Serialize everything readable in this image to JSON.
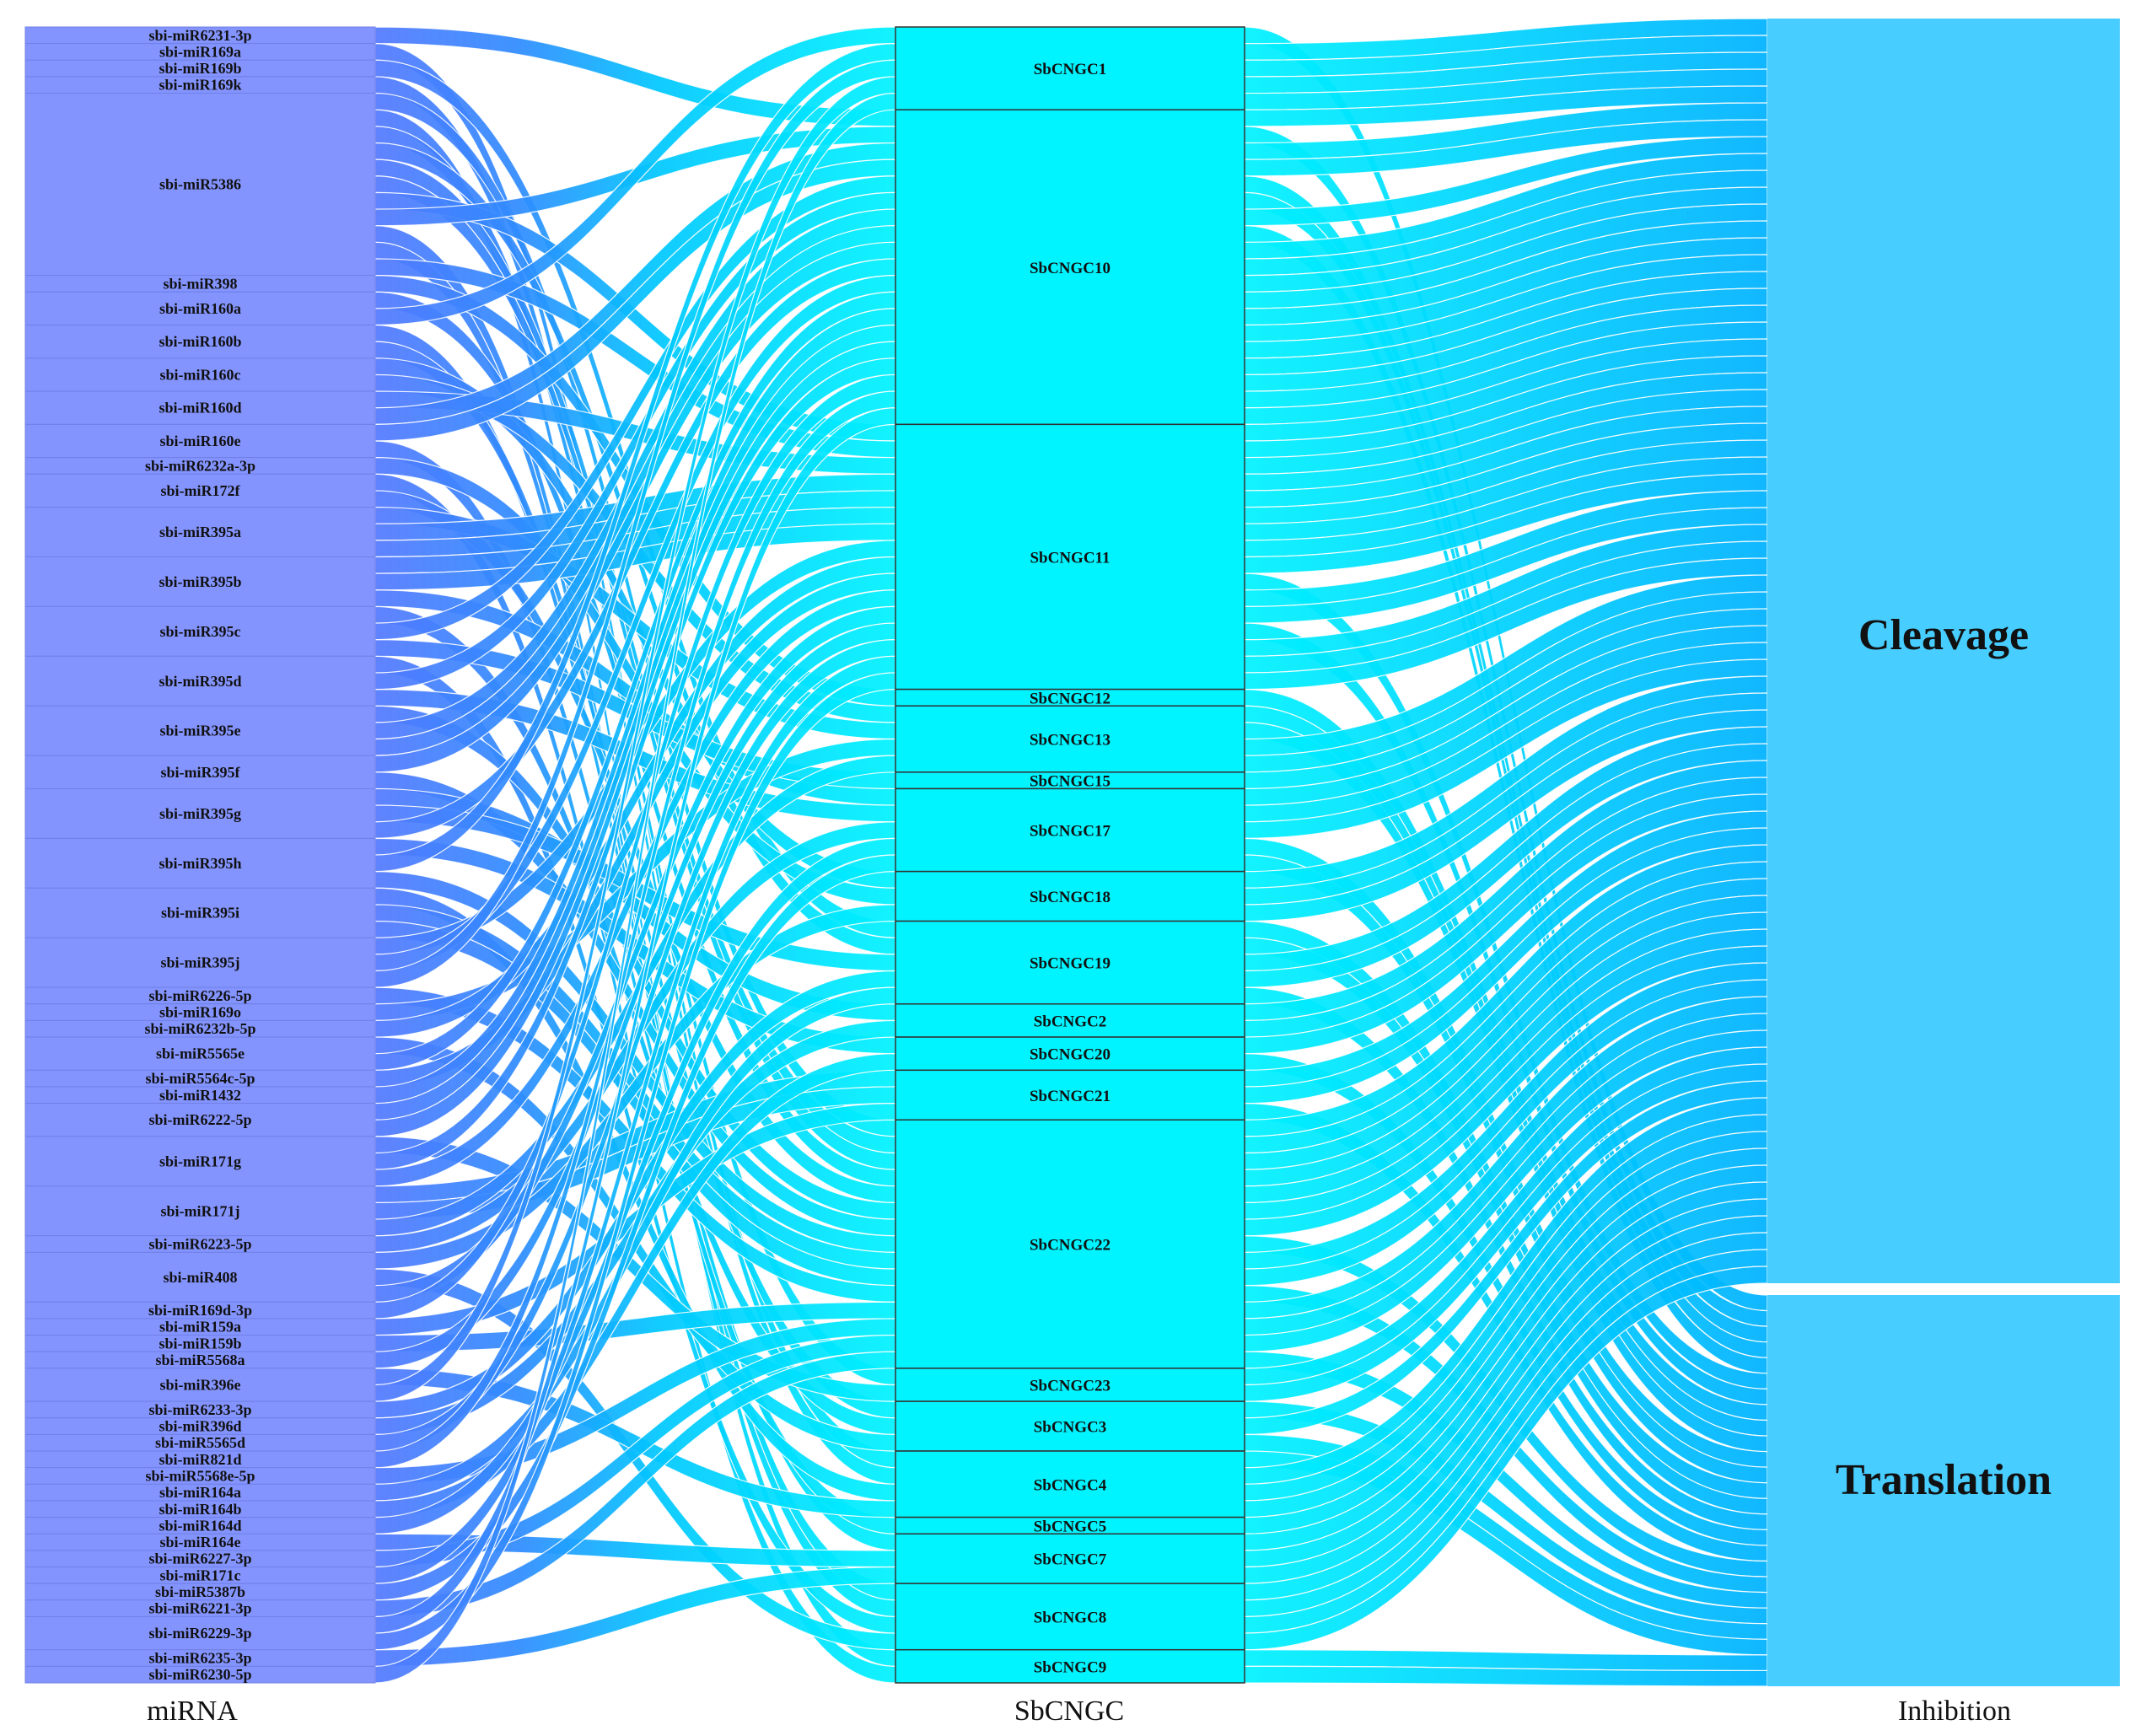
{
  "columns": {
    "mirna": "miRNA",
    "gene": "SbCNGC",
    "inhibition": "Inhibition"
  },
  "colors": {
    "mirna_node": "#8494ff",
    "mirna_link": "#5276ff",
    "mid_link": "#00e6ff",
    "gene_node": "#00f4ff",
    "gene_link": "#00b4ff",
    "inh_node": "#47cdff",
    "border": "#333333"
  },
  "inhibition_nodes": [
    {
      "id": "Cleavage",
      "label": "Cleavage"
    },
    {
      "id": "Translation",
      "label": "Translation"
    }
  ],
  "genes": [
    {
      "id": "SbCNGC1",
      "label": "SbCNGC1",
      "value": 5
    },
    {
      "id": "SbCNGC10",
      "label": "SbCNGC10",
      "value": 19
    },
    {
      "id": "SbCNGC11",
      "label": "SbCNGC11",
      "value": 16
    },
    {
      "id": "SbCNGC12",
      "label": "SbCNGC12",
      "value": 1
    },
    {
      "id": "SbCNGC13",
      "label": "SbCNGC13",
      "value": 4
    },
    {
      "id": "SbCNGC15",
      "label": "SbCNGC15",
      "value": 1
    },
    {
      "id": "SbCNGC17",
      "label": "SbCNGC17",
      "value": 5
    },
    {
      "id": "SbCNGC18",
      "label": "SbCNGC18",
      "value": 3
    },
    {
      "id": "SbCNGC19",
      "label": "SbCNGC19",
      "value": 5
    },
    {
      "id": "SbCNGC2",
      "label": "SbCNGC2",
      "value": 2
    },
    {
      "id": "SbCNGC20",
      "label": "SbCNGC20",
      "value": 2
    },
    {
      "id": "SbCNGC21",
      "label": "SbCNGC21",
      "value": 3
    },
    {
      "id": "SbCNGC22",
      "label": "SbCNGC22",
      "value": 15
    },
    {
      "id": "SbCNGC23",
      "label": "SbCNGC23",
      "value": 2
    },
    {
      "id": "SbCNGC3",
      "label": "SbCNGC3",
      "value": 3
    },
    {
      "id": "SbCNGC4",
      "label": "SbCNGC4",
      "value": 4
    },
    {
      "id": "SbCNGC5",
      "label": "SbCNGC5",
      "value": 1
    },
    {
      "id": "SbCNGC7",
      "label": "SbCNGC7",
      "value": 3
    },
    {
      "id": "SbCNGC8",
      "label": "SbCNGC8",
      "value": 4
    },
    {
      "id": "SbCNGC9",
      "label": "SbCNGC9",
      "value": 2
    }
  ],
  "mirnas": [
    {
      "label": "sbi-miR6231-3p",
      "value": 1
    },
    {
      "label": "sbi-miR169a",
      "value": 1
    },
    {
      "label": "sbi-miR169b",
      "value": 1
    },
    {
      "label": "sbi-miR169k",
      "value": 1
    },
    {
      "label": "sbi-miR5386",
      "value": 11
    },
    {
      "label": "sbi-miR398",
      "value": 1
    },
    {
      "label": "sbi-miR160a",
      "value": 2
    },
    {
      "label": "sbi-miR160b",
      "value": 2
    },
    {
      "label": "sbi-miR160c",
      "value": 2
    },
    {
      "label": "sbi-miR160d",
      "value": 2
    },
    {
      "label": "sbi-miR160e",
      "value": 2
    },
    {
      "label": "sbi-miR6232a-3p",
      "value": 1
    },
    {
      "label": "sbi-miR172f",
      "value": 2
    },
    {
      "label": "sbi-miR395a",
      "value": 3
    },
    {
      "label": "sbi-miR395b",
      "value": 3
    },
    {
      "label": "sbi-miR395c",
      "value": 3
    },
    {
      "label": "sbi-miR395d",
      "value": 3
    },
    {
      "label": "sbi-miR395e",
      "value": 3
    },
    {
      "label": "sbi-miR395f",
      "value": 2
    },
    {
      "label": "sbi-miR395g",
      "value": 3
    },
    {
      "label": "sbi-miR395h",
      "value": 3
    },
    {
      "label": "sbi-miR395i",
      "value": 3
    },
    {
      "label": "sbi-miR395j",
      "value": 3
    },
    {
      "label": "sbi-miR6226-5p",
      "value": 1
    },
    {
      "label": "sbi-miR169o",
      "value": 1
    },
    {
      "label": "sbi-miR6232b-5p",
      "value": 1
    },
    {
      "label": "sbi-miR5565e",
      "value": 2
    },
    {
      "label": "sbi-miR5564c-5p",
      "value": 1
    },
    {
      "label": "sbi-miR1432",
      "value": 1
    },
    {
      "label": "sbi-miR6222-5p",
      "value": 2
    },
    {
      "label": "sbi-miR171g",
      "value": 3
    },
    {
      "label": "sbi-miR171j",
      "value": 3
    },
    {
      "label": "sbi-miR6223-5p",
      "value": 1
    },
    {
      "label": "sbi-miR408",
      "value": 3
    },
    {
      "label": "sbi-miR169d-3p",
      "value": 1
    },
    {
      "label": "sbi-miR159a",
      "value": 1
    },
    {
      "label": "sbi-miR159b",
      "value": 1
    },
    {
      "label": "sbi-miR5568a",
      "value": 1
    },
    {
      "label": "sbi-miR396e",
      "value": 2
    },
    {
      "label": "sbi-miR6233-3p",
      "value": 1
    },
    {
      "label": "sbi-miR396d",
      "value": 1
    },
    {
      "label": "sbi-miR5565d",
      "value": 1
    },
    {
      "label": "sbi-miR821d",
      "value": 1
    },
    {
      "label": "sbi-miR5568e-5p",
      "value": 1
    },
    {
      "label": "sbi-miR164a",
      "value": 1
    },
    {
      "label": "sbi-miR164b",
      "value": 1
    },
    {
      "label": "sbi-miR164d",
      "value": 1
    },
    {
      "label": "sbi-miR164e",
      "value": 1
    },
    {
      "label": "sbi-miR6227-3p",
      "value": 1
    },
    {
      "label": "sbi-miR171c",
      "value": 1
    },
    {
      "label": "sbi-miR5387b",
      "value": 1
    },
    {
      "label": "sbi-miR6221-3p",
      "value": 1
    },
    {
      "label": "sbi-miR6229-3p",
      "value": 2
    },
    {
      "label": "sbi-miR6235-3p",
      "value": 1
    },
    {
      "label": "sbi-miR6230-5p",
      "value": 1
    }
  ]
}
